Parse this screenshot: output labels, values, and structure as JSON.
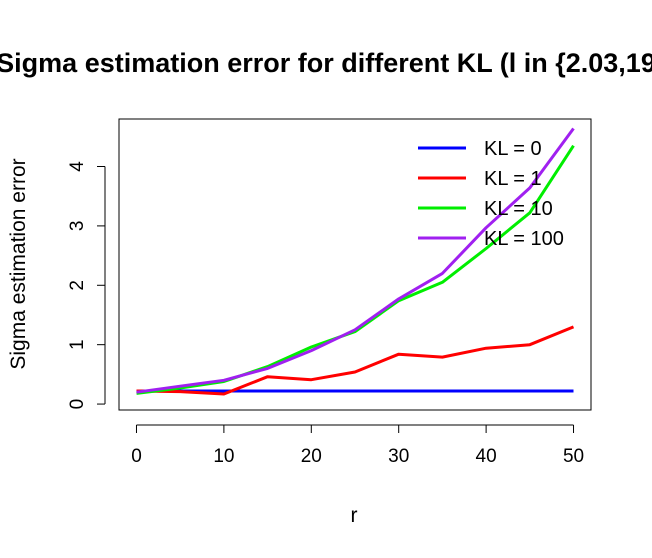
{
  "chart_data": {
    "type": "line",
    "title": "Sigma estimation error for different KL (l in {2.03,19",
    "xlabel": "r",
    "ylabel": "Sigma estimation error",
    "x": [
      0,
      5,
      10,
      15,
      20,
      25,
      30,
      35,
      40,
      45,
      50
    ],
    "xlim": [
      -2,
      52
    ],
    "ylim": [
      -0.1,
      4.8
    ],
    "xticks": [
      0,
      10,
      20,
      30,
      40,
      50
    ],
    "yticks": [
      0,
      1,
      2,
      3,
      4
    ],
    "legend_position": "top-right",
    "grid": false,
    "series": [
      {
        "name": "KL = 0",
        "color": "#0000ff",
        "values": [
          0.22,
          0.22,
          0.22,
          0.22,
          0.22,
          0.22,
          0.22,
          0.22,
          0.22,
          0.22,
          0.22
        ]
      },
      {
        "name": "KL = 1",
        "color": "#ff0000",
        "values": [
          0.22,
          0.21,
          0.17,
          0.46,
          0.41,
          0.54,
          0.84,
          0.79,
          0.94,
          1.0,
          1.3
        ]
      },
      {
        "name": "KL = 10",
        "color": "#00ee00",
        "values": [
          0.18,
          0.27,
          0.38,
          0.63,
          0.96,
          1.22,
          1.74,
          2.05,
          2.62,
          3.22,
          4.35
        ]
      },
      {
        "name": "KL = 100",
        "color": "#a020f0",
        "values": [
          0.2,
          0.3,
          0.4,
          0.6,
          0.9,
          1.25,
          1.77,
          2.2,
          2.97,
          3.64,
          4.64
        ]
      }
    ]
  }
}
